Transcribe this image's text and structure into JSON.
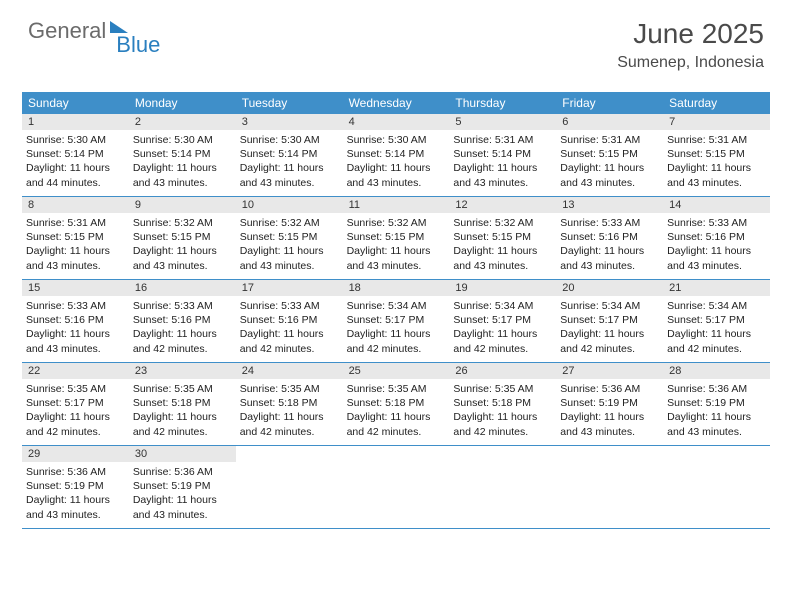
{
  "logo": {
    "part1": "General",
    "part2": "Blue"
  },
  "header": {
    "month": "June 2025",
    "location": "Sumenep, Indonesia"
  },
  "theme": {
    "accent": "#3f8fc9",
    "day_bar": "#e8e8e8",
    "text": "#222222"
  },
  "weekdays": [
    "Sunday",
    "Monday",
    "Tuesday",
    "Wednesday",
    "Thursday",
    "Friday",
    "Saturday"
  ],
  "weeks": [
    [
      {
        "n": "1",
        "sr": "Sunrise: 5:30 AM",
        "ss": "Sunset: 5:14 PM",
        "d1": "Daylight: 11 hours",
        "d2": "and 44 minutes."
      },
      {
        "n": "2",
        "sr": "Sunrise: 5:30 AM",
        "ss": "Sunset: 5:14 PM",
        "d1": "Daylight: 11 hours",
        "d2": "and 43 minutes."
      },
      {
        "n": "3",
        "sr": "Sunrise: 5:30 AM",
        "ss": "Sunset: 5:14 PM",
        "d1": "Daylight: 11 hours",
        "d2": "and 43 minutes."
      },
      {
        "n": "4",
        "sr": "Sunrise: 5:30 AM",
        "ss": "Sunset: 5:14 PM",
        "d1": "Daylight: 11 hours",
        "d2": "and 43 minutes."
      },
      {
        "n": "5",
        "sr": "Sunrise: 5:31 AM",
        "ss": "Sunset: 5:14 PM",
        "d1": "Daylight: 11 hours",
        "d2": "and 43 minutes."
      },
      {
        "n": "6",
        "sr": "Sunrise: 5:31 AM",
        "ss": "Sunset: 5:15 PM",
        "d1": "Daylight: 11 hours",
        "d2": "and 43 minutes."
      },
      {
        "n": "7",
        "sr": "Sunrise: 5:31 AM",
        "ss": "Sunset: 5:15 PM",
        "d1": "Daylight: 11 hours",
        "d2": "and 43 minutes."
      }
    ],
    [
      {
        "n": "8",
        "sr": "Sunrise: 5:31 AM",
        "ss": "Sunset: 5:15 PM",
        "d1": "Daylight: 11 hours",
        "d2": "and 43 minutes."
      },
      {
        "n": "9",
        "sr": "Sunrise: 5:32 AM",
        "ss": "Sunset: 5:15 PM",
        "d1": "Daylight: 11 hours",
        "d2": "and 43 minutes."
      },
      {
        "n": "10",
        "sr": "Sunrise: 5:32 AM",
        "ss": "Sunset: 5:15 PM",
        "d1": "Daylight: 11 hours",
        "d2": "and 43 minutes."
      },
      {
        "n": "11",
        "sr": "Sunrise: 5:32 AM",
        "ss": "Sunset: 5:15 PM",
        "d1": "Daylight: 11 hours",
        "d2": "and 43 minutes."
      },
      {
        "n": "12",
        "sr": "Sunrise: 5:32 AM",
        "ss": "Sunset: 5:15 PM",
        "d1": "Daylight: 11 hours",
        "d2": "and 43 minutes."
      },
      {
        "n": "13",
        "sr": "Sunrise: 5:33 AM",
        "ss": "Sunset: 5:16 PM",
        "d1": "Daylight: 11 hours",
        "d2": "and 43 minutes."
      },
      {
        "n": "14",
        "sr": "Sunrise: 5:33 AM",
        "ss": "Sunset: 5:16 PM",
        "d1": "Daylight: 11 hours",
        "d2": "and 43 minutes."
      }
    ],
    [
      {
        "n": "15",
        "sr": "Sunrise: 5:33 AM",
        "ss": "Sunset: 5:16 PM",
        "d1": "Daylight: 11 hours",
        "d2": "and 43 minutes."
      },
      {
        "n": "16",
        "sr": "Sunrise: 5:33 AM",
        "ss": "Sunset: 5:16 PM",
        "d1": "Daylight: 11 hours",
        "d2": "and 42 minutes."
      },
      {
        "n": "17",
        "sr": "Sunrise: 5:33 AM",
        "ss": "Sunset: 5:16 PM",
        "d1": "Daylight: 11 hours",
        "d2": "and 42 minutes."
      },
      {
        "n": "18",
        "sr": "Sunrise: 5:34 AM",
        "ss": "Sunset: 5:17 PM",
        "d1": "Daylight: 11 hours",
        "d2": "and 42 minutes."
      },
      {
        "n": "19",
        "sr": "Sunrise: 5:34 AM",
        "ss": "Sunset: 5:17 PM",
        "d1": "Daylight: 11 hours",
        "d2": "and 42 minutes."
      },
      {
        "n": "20",
        "sr": "Sunrise: 5:34 AM",
        "ss": "Sunset: 5:17 PM",
        "d1": "Daylight: 11 hours",
        "d2": "and 42 minutes."
      },
      {
        "n": "21",
        "sr": "Sunrise: 5:34 AM",
        "ss": "Sunset: 5:17 PM",
        "d1": "Daylight: 11 hours",
        "d2": "and 42 minutes."
      }
    ],
    [
      {
        "n": "22",
        "sr": "Sunrise: 5:35 AM",
        "ss": "Sunset: 5:17 PM",
        "d1": "Daylight: 11 hours",
        "d2": "and 42 minutes."
      },
      {
        "n": "23",
        "sr": "Sunrise: 5:35 AM",
        "ss": "Sunset: 5:18 PM",
        "d1": "Daylight: 11 hours",
        "d2": "and 42 minutes."
      },
      {
        "n": "24",
        "sr": "Sunrise: 5:35 AM",
        "ss": "Sunset: 5:18 PM",
        "d1": "Daylight: 11 hours",
        "d2": "and 42 minutes."
      },
      {
        "n": "25",
        "sr": "Sunrise: 5:35 AM",
        "ss": "Sunset: 5:18 PM",
        "d1": "Daylight: 11 hours",
        "d2": "and 42 minutes."
      },
      {
        "n": "26",
        "sr": "Sunrise: 5:35 AM",
        "ss": "Sunset: 5:18 PM",
        "d1": "Daylight: 11 hours",
        "d2": "and 42 minutes."
      },
      {
        "n": "27",
        "sr": "Sunrise: 5:36 AM",
        "ss": "Sunset: 5:19 PM",
        "d1": "Daylight: 11 hours",
        "d2": "and 43 minutes."
      },
      {
        "n": "28",
        "sr": "Sunrise: 5:36 AM",
        "ss": "Sunset: 5:19 PM",
        "d1": "Daylight: 11 hours",
        "d2": "and 43 minutes."
      }
    ],
    [
      {
        "n": "29",
        "sr": "Sunrise: 5:36 AM",
        "ss": "Sunset: 5:19 PM",
        "d1": "Daylight: 11 hours",
        "d2": "and 43 minutes."
      },
      {
        "n": "30",
        "sr": "Sunrise: 5:36 AM",
        "ss": "Sunset: 5:19 PM",
        "d1": "Daylight: 11 hours",
        "d2": "and 43 minutes."
      },
      null,
      null,
      null,
      null,
      null
    ]
  ]
}
